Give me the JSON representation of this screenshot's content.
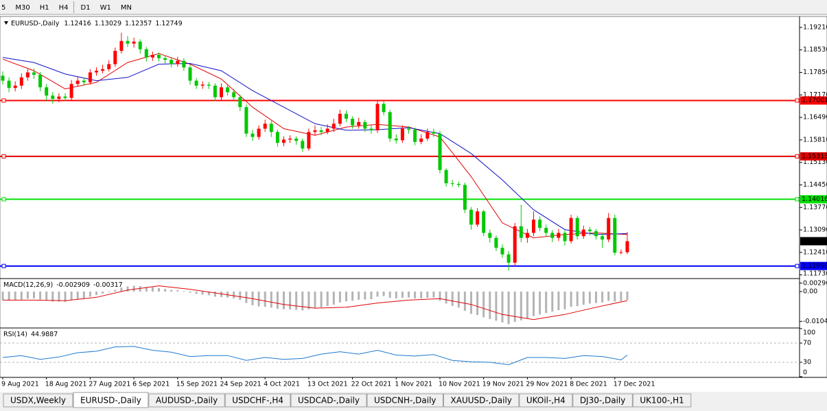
{
  "toolbar": {
    "timeframes": [
      "5",
      "M30",
      "H1",
      "H4",
      "D1",
      "W1",
      "MN"
    ]
  },
  "chart_data": [
    {
      "type": "candlestick",
      "title": "EURUSD-,Daily",
      "categories": [
        "9 Aug 2021",
        null,
        null,
        null,
        null,
        null,
        null,
        "18 Aug 2021",
        null,
        null,
        null,
        null,
        null,
        null,
        "27 Aug 2021",
        null,
        null,
        null,
        null,
        null,
        null,
        "6 Sep 2021",
        null,
        null,
        null,
        null,
        null,
        null,
        "15 Sep 2021",
        null,
        null,
        null,
        null,
        null,
        null,
        "24 Sep 2021",
        null,
        null,
        null,
        null,
        null,
        null,
        "4 Oct 2021",
        null,
        null,
        null,
        null,
        null,
        null,
        "13 Oct 2021",
        null,
        null,
        null,
        null,
        null,
        null,
        "22 Oct 2021",
        null,
        null,
        null,
        null,
        null,
        null,
        "1 Nov 2021",
        null,
        null,
        null,
        null,
        null,
        null,
        "10 Nov 2021",
        null,
        null,
        null,
        null,
        null,
        null,
        "19 Nov 2021",
        null,
        null,
        null,
        null,
        null,
        null,
        "29 Nov 2021",
        null,
        null,
        null,
        null,
        null,
        null,
        "8 Dec 2021",
        null,
        null,
        null,
        null,
        null,
        null,
        "17 Dec 2021",
        null,
        null
      ],
      "open": [
        1.1775,
        1.176,
        1.1738,
        1.1745,
        1.177,
        1.1785,
        1.1778,
        1.174,
        1.1715,
        1.1705,
        1.1712,
        1.1708,
        1.175,
        1.176,
        1.1755,
        1.1785,
        1.179,
        1.1795,
        1.181,
        1.185,
        1.188,
        1.1872,
        1.1878,
        1.1855,
        1.183,
        1.1838,
        1.1828,
        1.1823,
        1.181,
        1.182,
        1.18,
        1.176,
        1.1745,
        1.1748,
        1.1745,
        1.171,
        1.174,
        1.1725,
        1.171,
        1.168,
        1.16,
        1.159,
        1.1615,
        1.163,
        1.1605,
        1.1572,
        1.1582,
        1.1585,
        1.1578,
        1.1555,
        1.1605,
        1.161,
        1.1605,
        1.1615,
        1.163,
        1.166,
        1.1645,
        1.1625,
        1.1635,
        1.1615,
        1.161,
        1.169,
        1.1665,
        1.1585,
        1.158,
        1.1615,
        1.1612,
        1.1575,
        1.1585,
        1.1605,
        1.16,
        1.149,
        1.145,
        1.1448,
        1.1445,
        1.137,
        1.1325,
        1.1365,
        1.13,
        1.1285,
        1.1255,
        1.1235,
        1.121,
        1.132,
        1.1285,
        1.13,
        1.134,
        1.1315,
        1.13,
        1.1285,
        1.13,
        1.1275,
        1.1345,
        1.129,
        1.131,
        1.1305,
        1.129,
        1.128,
        1.1345,
        1.124,
        1.12416
      ],
      "high": [
        1.1788,
        1.177,
        1.1758,
        1.1782,
        1.1795,
        1.1797,
        1.1786,
        1.175,
        1.1726,
        1.1722,
        1.1722,
        1.1762,
        1.1772,
        1.177,
        1.1795,
        1.18,
        1.1808,
        1.1822,
        1.186,
        1.1905,
        1.1895,
        1.189,
        1.1885,
        1.1862,
        1.1848,
        1.1845,
        1.1836,
        1.1832,
        1.1832,
        1.1828,
        1.1808,
        1.1768,
        1.1758,
        1.1756,
        1.1752,
        1.1752,
        1.1748,
        1.1735,
        1.1718,
        1.1688,
        1.1612,
        1.1625,
        1.1642,
        1.1638,
        1.1612,
        1.1592,
        1.1595,
        1.1592,
        1.1585,
        1.1615,
        1.1625,
        1.162,
        1.1628,
        1.1645,
        1.1672,
        1.167,
        1.1652,
        1.1648,
        1.1642,
        1.1625,
        1.1698,
        1.1698,
        1.1672,
        1.1598,
        1.1625,
        1.1622,
        1.1618,
        1.1598,
        1.1615,
        1.1615,
        1.1608,
        1.1495,
        1.146,
        1.1455,
        1.1452,
        1.1378,
        1.1375,
        1.137,
        1.131,
        1.1292,
        1.1265,
        1.1245,
        1.133,
        1.1385,
        1.1312,
        1.1365,
        1.135,
        1.1325,
        1.1308,
        1.1312,
        1.1308,
        1.1355,
        1.1352,
        1.1322,
        1.1318,
        1.1312,
        1.1298,
        1.136,
        1.1355,
        1.125,
        1.13029
      ],
      "low": [
        1.1748,
        1.1725,
        1.1728,
        1.1735,
        1.176,
        1.1766,
        1.1728,
        1.17,
        1.169,
        1.1695,
        1.1698,
        1.17,
        1.1742,
        1.1745,
        1.1748,
        1.1775,
        1.1782,
        1.1788,
        1.1802,
        1.1842,
        1.1862,
        1.186,
        1.1842,
        1.1818,
        1.182,
        1.1818,
        1.1812,
        1.18,
        1.1802,
        1.179,
        1.1748,
        1.1735,
        1.1735,
        1.1735,
        1.1698,
        1.1702,
        1.1715,
        1.17,
        1.1668,
        1.159,
        1.1578,
        1.1582,
        1.1605,
        1.159,
        1.156,
        1.1562,
        1.1572,
        1.1566,
        1.1545,
        1.1548,
        1.1595,
        1.1595,
        1.1598,
        1.1605,
        1.1622,
        1.1635,
        1.1615,
        1.1615,
        1.1605,
        1.16,
        1.1602,
        1.1655,
        1.1575,
        1.157,
        1.1572,
        1.16,
        1.1565,
        1.1568,
        1.1578,
        1.159,
        1.148,
        1.144,
        1.144,
        1.1438,
        1.136,
        1.131,
        1.1318,
        1.129,
        1.127,
        1.1245,
        1.1225,
        1.1186,
        1.12,
        1.1272,
        1.127,
        1.129,
        1.1305,
        1.129,
        1.1272,
        1.1275,
        1.1262,
        1.1268,
        1.128,
        1.1282,
        1.1292,
        1.128,
        1.1255,
        1.1272,
        1.1232,
        1.1235,
        1.12357
      ],
      "close": [
        1.176,
        1.1738,
        1.1745,
        1.177,
        1.1785,
        1.1778,
        1.174,
        1.1715,
        1.1705,
        1.1712,
        1.1708,
        1.175,
        1.176,
        1.1755,
        1.1785,
        1.179,
        1.1795,
        1.181,
        1.185,
        1.188,
        1.1872,
        1.1878,
        1.1855,
        1.183,
        1.1838,
        1.1828,
        1.1823,
        1.181,
        1.182,
        1.18,
        1.176,
        1.1745,
        1.1748,
        1.1745,
        1.171,
        1.174,
        1.1725,
        1.171,
        1.168,
        1.16,
        1.159,
        1.1615,
        1.163,
        1.1605,
        1.1572,
        1.1582,
        1.1585,
        1.1578,
        1.1555,
        1.1605,
        1.161,
        1.1605,
        1.1615,
        1.163,
        1.166,
        1.1645,
        1.1625,
        1.1635,
        1.1615,
        1.161,
        1.169,
        1.1665,
        1.1585,
        1.158,
        1.1615,
        1.1612,
        1.1575,
        1.1585,
        1.1605,
        1.16,
        1.149,
        1.145,
        1.1448,
        1.1445,
        1.137,
        1.1325,
        1.1365,
        1.13,
        1.1285,
        1.1255,
        1.1235,
        1.121,
        1.132,
        1.1285,
        1.13,
        1.134,
        1.1315,
        1.13,
        1.1285,
        1.13,
        1.1275,
        1.1345,
        1.129,
        1.131,
        1.1305,
        1.129,
        1.128,
        1.1345,
        1.124,
        1.12416,
        1.12749
      ],
      "up_color": "#ff0000",
      "down_color": "#00c800",
      "ylim": [
        1.1164,
        1.1952
      ],
      "yticks": [
        {
          "value": 1.1921,
          "label": "1.19210"
        },
        {
          "value": 1.1853,
          "label": "1.18530"
        },
        {
          "value": 1.1785,
          "label": "1.17850"
        },
        {
          "value": 1.1717,
          "label": "1.17170"
        },
        {
          "value": 1.1649,
          "label": "1.16490"
        },
        {
          "value": 1.1581,
          "label": "1.15810"
        },
        {
          "value": 1.1513,
          "label": "1.15130"
        },
        {
          "value": 1.1445,
          "label": "1.14450"
        },
        {
          "value": 1.1377,
          "label": "1.13770"
        },
        {
          "value": 1.1309,
          "label": "1.13090"
        },
        {
          "value": 1.1241,
          "label": "1.12410"
        },
        {
          "value": 1.1173,
          "label": "1.11730"
        }
      ],
      "levels": [
        {
          "value": 1.17001,
          "color": "#ff0000"
        },
        {
          "value": 1.15313,
          "color": "#e00000"
        },
        {
          "value": 1.14016,
          "color": "#00e000"
        },
        {
          "value": 1.11999,
          "color": "#0000ff"
        }
      ],
      "series": [
        {
          "color": "#e00000",
          "x": [
            0,
            5,
            10,
            15,
            20,
            25,
            30,
            35,
            40,
            45,
            50,
            55,
            60,
            65,
            70,
            75,
            80,
            85,
            90,
            95,
            100
          ],
          "values": [
            1.1825,
            1.179,
            1.1735,
            1.1755,
            1.1815,
            1.1842,
            1.181,
            1.1765,
            1.168,
            1.1615,
            1.1595,
            1.162,
            1.1628,
            1.162,
            1.159,
            1.147,
            1.133,
            1.1285,
            1.1295,
            1.13,
            1.1295
          ]
        },
        {
          "color": "#1010c8",
          "x": [
            0,
            5,
            10,
            15,
            20,
            25,
            30,
            35,
            40,
            45,
            50,
            55,
            60,
            65,
            70,
            75,
            80,
            85,
            90,
            95,
            100
          ],
          "values": [
            1.183,
            1.1815,
            1.178,
            1.176,
            1.177,
            1.181,
            1.1812,
            1.179,
            1.173,
            1.168,
            1.163,
            1.161,
            1.1612,
            1.1618,
            1.16,
            1.154,
            1.146,
            1.137,
            1.131,
            1.1295,
            1.1298
          ]
        }
      ]
    },
    {
      "type": "macd",
      "title": "MACD(12,26,9)",
      "color": "#b4b4b4",
      "values": [
        -0.003,
        -0.0032,
        -0.003,
        -0.0028,
        -0.0025,
        -0.0024,
        -0.0028,
        -0.0032,
        -0.0035,
        -0.0035,
        -0.0036,
        -0.003,
        -0.0027,
        -0.0024,
        -0.0018,
        -0.0012,
        -0.0007,
        -0.0002,
        0.0006,
        0.0014,
        0.0018,
        0.002,
        0.0019,
        0.0016,
        0.0015,
        0.0012,
        0.0009,
        0.0006,
        0.0005,
        0.0002,
        -0.0004,
        -0.0008,
        -0.0011,
        -0.0013,
        -0.0018,
        -0.0019,
        -0.0021,
        -0.0024,
        -0.0029,
        -0.004,
        -0.0048,
        -0.0052,
        -0.0053,
        -0.0056,
        -0.006,
        -0.0062,
        -0.0063,
        -0.0064,
        -0.0066,
        -0.0062,
        -0.0058,
        -0.0055,
        -0.0051,
        -0.0046,
        -0.0038,
        -0.0034,
        -0.0032,
        -0.0029,
        -0.0028,
        -0.0027,
        -0.0018,
        -0.0016,
        -0.0022,
        -0.0024,
        -0.0022,
        -0.0021,
        -0.0024,
        -0.0024,
        -0.0022,
        -0.0021,
        -0.0032,
        -0.0042,
        -0.005,
        -0.0056,
        -0.0067,
        -0.0078,
        -0.0082,
        -0.009,
        -0.0096,
        -0.0102,
        -0.0108,
        -0.0114,
        -0.0106,
        -0.0101,
        -0.0094,
        -0.0086,
        -0.008,
        -0.0075,
        -0.007,
        -0.0065,
        -0.0062,
        -0.0053,
        -0.0051,
        -0.0046,
        -0.0042,
        -0.004,
        -0.0038,
        -0.0033,
        -0.0035,
        -0.0034,
        -0.002909
      ],
      "series": [
        {
          "color": "#e00000",
          "x": [
            0,
            5,
            10,
            15,
            20,
            25,
            30,
            35,
            40,
            45,
            50,
            55,
            60,
            65,
            70,
            75,
            80,
            85,
            90,
            95,
            100
          ],
          "values": [
            -0.003,
            -0.003,
            -0.0032,
            -0.002,
            0.0005,
            0.002,
            0.0008,
            -0.0008,
            -0.0025,
            -0.0045,
            -0.0058,
            -0.0055,
            -0.004,
            -0.003,
            -0.0025,
            -0.0045,
            -0.008,
            -0.0098,
            -0.008,
            -0.0055,
            -0.00317
          ]
        }
      ],
      "ylim": [
        -0.0125,
        0.0043
      ],
      "yticks": [
        0.002966,
        {
          "value": 0,
          "label": "0.00"
        },
        -0.01042
      ]
    },
    {
      "type": "line",
      "title": "RSI(14)",
      "series": [
        {
          "color": "#1e78d0",
          "x": [
            0,
            3,
            6,
            9,
            12,
            15,
            18,
            21,
            24,
            27,
            30,
            33,
            36,
            39,
            42,
            45,
            48,
            51,
            54,
            57,
            60,
            63,
            66,
            69,
            72,
            75,
            78,
            81,
            84,
            87,
            90,
            93,
            96,
            99,
            100
          ],
          "values": [
            40,
            44,
            36,
            41,
            50,
            53,
            62,
            63,
            55,
            51,
            42,
            44,
            44,
            34,
            40,
            36,
            38,
            47,
            52,
            47,
            55,
            45,
            43,
            46,
            34,
            31,
            30,
            25,
            40,
            40,
            38,
            44,
            42,
            35,
            44.9887
          ]
        }
      ],
      "levels": [
        70,
        30
      ],
      "ylim": [
        0,
        100
      ],
      "yticks": [
        100,
        70,
        30,
        0
      ]
    }
  ],
  "tabs": [
    "USDX,Weekly",
    "EURUSD-,Daily",
    "AUDUSD-,Daily",
    "USDCHF-,H4",
    "USDCAD-,Daily",
    "USDCNH-,Daily",
    "XAUUSD-,Daily",
    "UKOil-,H4",
    "DJ30-,Daily",
    "UK100-,H1"
  ],
  "active_tab": 1
}
